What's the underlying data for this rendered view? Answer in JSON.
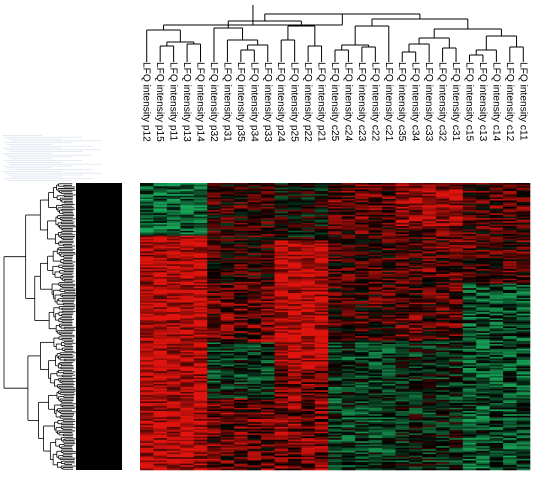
{
  "chart_data": {
    "type": "heatmap",
    "title": "",
    "xlabel": "",
    "ylabel": "",
    "legend": false,
    "columns": [
      "LFQ intensity p12",
      "LFQ intensity p15",
      "LFQ intensity p11",
      "LFQ intensity p13",
      "LFQ intensity p14",
      "LFQ intensity p32",
      "LFQ intensity p31",
      "LFQ intensity p35",
      "LFQ intensity p34",
      "LFQ intensity p33",
      "LFQ intensity p24",
      "LFQ intensity p25",
      "LFQ intensity p22",
      "LFQ intensity p21",
      "LFQ intensity c25",
      "LFQ intensity c24",
      "LFQ intensity c23",
      "LFQ intensity c22",
      "LFQ intensity c21",
      "LFQ intensity c35",
      "LFQ intensity c34",
      "LFQ intensity c33",
      "LFQ intensity c32",
      "LFQ intensity c31",
      "LFQ intensity c15",
      "LFQ intensity c13",
      "LFQ intensity c14",
      "LFQ intensity c12",
      "LFQ intensity c11"
    ],
    "row_count": 180,
    "row_names_visible": false,
    "color_scale": {
      "low": "#19a65a",
      "mid": "#000000",
      "high": "#e0140e"
    },
    "column_dendrogram": true,
    "row_dendrogram": true,
    "row_label_column_color": "#000000"
  }
}
